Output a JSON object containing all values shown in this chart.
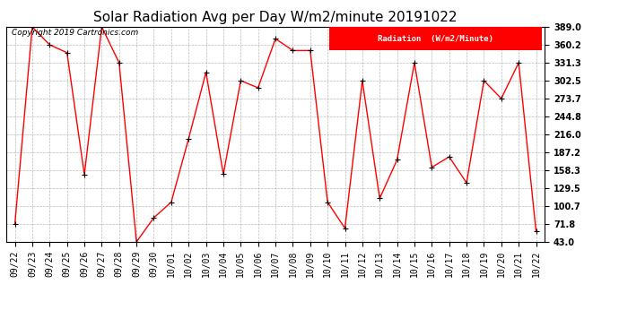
{
  "title": "Solar Radiation Avg per Day W/m2/minute 20191022",
  "copyright_text": "Copyright 2019 Cartronics.com",
  "legend_label": "Radiation  (W/m2/Minute)",
  "dates": [
    "09/22",
    "09/23",
    "09/24",
    "09/25",
    "09/26",
    "09/27",
    "09/28",
    "09/29",
    "09/30",
    "10/01",
    "10/02",
    "10/03",
    "10/04",
    "10/05",
    "10/06",
    "10/07",
    "10/08",
    "10/09",
    "10/10",
    "10/11",
    "10/12",
    "10/13",
    "10/14",
    "10/15",
    "10/16",
    "10/17",
    "10/18",
    "10/19",
    "10/20",
    "10/21",
    "10/22"
  ],
  "values": [
    71.8,
    389.0,
    360.2,
    347.5,
    151.0,
    389.0,
    331.3,
    43.0,
    82.0,
    107.0,
    209.0,
    316.0,
    152.0,
    302.5,
    291.0,
    370.0,
    351.0,
    351.0,
    107.0,
    65.0,
    302.5,
    113.0,
    175.0,
    331.3,
    163.0,
    180.0,
    138.0,
    302.5,
    273.7,
    331.3,
    60.0
  ],
  "line_color": "red",
  "marker_color": "black",
  "bg_color": "#ffffff",
  "grid_color": "#aaaaaa",
  "ylim": [
    43.0,
    389.0
  ],
  "yticks": [
    43.0,
    71.8,
    100.7,
    129.5,
    158.3,
    187.2,
    216.0,
    244.8,
    273.7,
    302.5,
    331.3,
    360.2,
    389.0
  ],
  "legend_bg": "red",
  "legend_text_color": "white",
  "title_fontsize": 11,
  "tick_fontsize": 7,
  "copyright_fontsize": 6.5
}
